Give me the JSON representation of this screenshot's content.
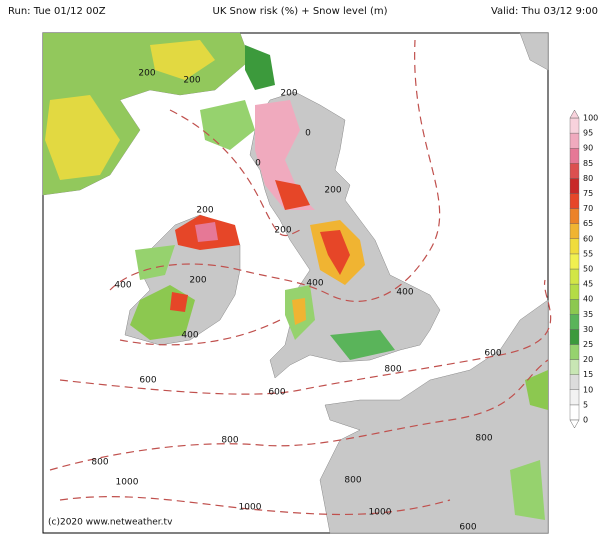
{
  "header": {
    "run": "Run: Tue 01/12 00Z",
    "title": "UK Snow risk (%) + Snow level (m)",
    "valid": "Valid: Thu 03/12 9:00"
  },
  "footer": {
    "credit": "(c)2020 www.netweather.tv"
  },
  "legend": {
    "ticks": [
      0,
      5,
      10,
      15,
      20,
      25,
      30,
      35,
      40,
      45,
      50,
      55,
      60,
      65,
      70,
      75,
      80,
      85,
      90,
      95,
      100
    ],
    "colors": [
      "#ffffff",
      "#f2f2f2",
      "#dcdcdc",
      "#c8e6b4",
      "#96d26e",
      "#3c9a3c",
      "#5ab45a",
      "#8cc850",
      "#b4dc46",
      "#d2e646",
      "#f0f050",
      "#f0dc3c",
      "#f0b432",
      "#ec8228",
      "#e64628",
      "#c82828",
      "#dc5050",
      "#e67896",
      "#f0aabe",
      "#f8d2dc"
    ]
  },
  "contour_labels": [
    "200",
    "200",
    "200",
    "0",
    "0",
    "200",
    "200",
    "200",
    "400",
    "200",
    "400",
    "400",
    "400",
    "600",
    "600",
    "800",
    "600",
    "800",
    "800",
    "800",
    "1000",
    "800",
    "1000",
    "1000",
    "600"
  ]
}
